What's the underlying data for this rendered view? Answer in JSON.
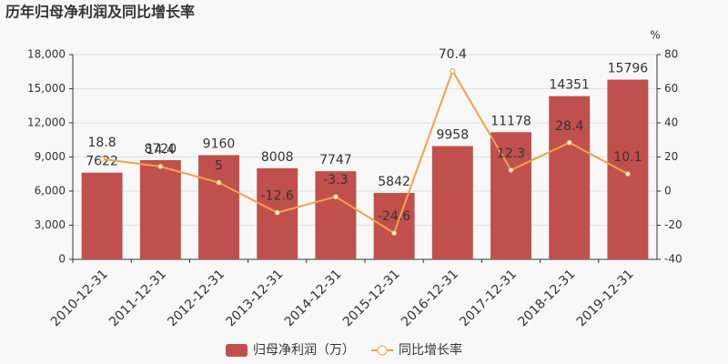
{
  "chart_data": {
    "type": "bar",
    "title": "历年归母净利润及同比增长率",
    "categories": [
      "2010-12-31",
      "2011-12-31",
      "2012-12-31",
      "2013-12-31",
      "2014-12-31",
      "2015-12-31",
      "2016-12-31",
      "2017-12-31",
      "2018-12-31",
      "2019-12-31"
    ],
    "series": [
      {
        "name": "归母净利润（万）",
        "type": "bar",
        "color": "#c0504d",
        "values": [
          7622,
          8720,
          9160,
          8008,
          7747,
          5842,
          9958,
          11178,
          14351,
          15796
        ]
      },
      {
        "name": "同比增长率",
        "type": "line",
        "axis": "y2",
        "color": "#f5a04a",
        "values": [
          18.8,
          14.4,
          5,
          -12.6,
          -3.3,
          -24.6,
          70.4,
          12.3,
          28.4,
          10.1
        ]
      }
    ],
    "ylim": [
      0,
      18000
    ],
    "yticks": [
      0,
      {
        "value": 3000,
        "label": "3,000"
      },
      {
        "value": 6000,
        "label": "6,000"
      },
      {
        "value": 9000,
        "label": "9,000"
      },
      {
        "value": 12000,
        "label": "12,000"
      },
      {
        "value": 15000,
        "label": "15,000"
      },
      {
        "value": 18000,
        "label": "18,000"
      }
    ],
    "y2lim": [
      -40,
      80
    ],
    "y2ticks": [
      -40,
      -20,
      0,
      20,
      40,
      60,
      80
    ],
    "y2_unit": "%",
    "grid": true
  }
}
